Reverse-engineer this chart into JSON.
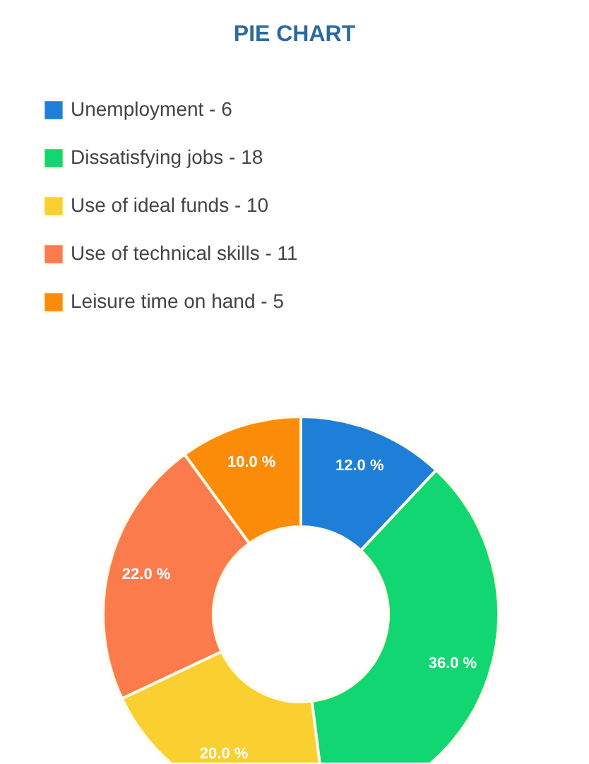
{
  "chart_data": {
    "type": "donut",
    "title": "PIE CHART",
    "categories": [
      "Unemployment - 6",
      "Dissatisfying jobs - 18",
      "Use of ideal funds - 10",
      "Use of technical skills - 11",
      "Leisure time on hand - 5"
    ],
    "values": [
      12,
      36,
      20,
      22,
      10
    ],
    "colors": [
      "#1e7fd8",
      "#12d672",
      "#f9d030",
      "#fb7b4c",
      "#fb8c0a"
    ],
    "value_labels": [
      "12.0 %",
      "36.0 %",
      "20.0 %",
      "22.0 %",
      "10.0 %"
    ],
    "legend": "top left"
  }
}
